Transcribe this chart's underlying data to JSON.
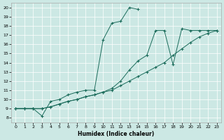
{
  "xlabel": "Humidex (Indice chaleur)",
  "xlim": [
    -0.5,
    23.5
  ],
  "ylim": [
    7.5,
    20.5
  ],
  "xticks": [
    0,
    1,
    2,
    3,
    4,
    5,
    6,
    7,
    8,
    9,
    10,
    11,
    12,
    13,
    14,
    15,
    16,
    17,
    18,
    19,
    20,
    21,
    22,
    23
  ],
  "yticks": [
    8,
    9,
    10,
    11,
    12,
    13,
    14,
    15,
    16,
    17,
    18,
    19,
    20
  ],
  "bg_color": "#cce8e4",
  "line_color": "#1a6b5a",
  "series1_x": [
    0,
    1,
    2,
    3,
    4,
    5,
    6,
    7,
    8,
    9,
    10,
    11,
    12,
    13,
    14
  ],
  "series1_y": [
    9.0,
    9.0,
    9.0,
    8.2,
    9.8,
    10.0,
    10.5,
    10.8,
    11.0,
    11.0,
    16.5,
    18.3,
    18.5,
    20.0,
    19.8
  ],
  "series2_x": [
    0,
    1,
    2,
    3,
    4,
    5,
    6,
    7,
    8,
    9,
    10,
    11,
    12,
    13,
    14,
    15,
    16,
    17,
    18,
    19,
    20,
    21,
    22,
    23
  ],
  "series2_y": [
    9.0,
    9.0,
    9.0,
    9.0,
    9.2,
    9.5,
    9.8,
    10.0,
    10.3,
    10.5,
    10.8,
    11.0,
    11.5,
    12.0,
    12.5,
    13.0,
    13.5,
    14.0,
    14.8,
    15.5,
    16.2,
    16.8,
    17.2,
    17.5
  ],
  "series3_x": [
    0,
    1,
    2,
    3,
    4,
    5,
    6,
    7,
    8,
    9,
    10,
    11,
    12,
    13,
    14,
    15,
    16,
    17,
    18,
    19,
    20,
    21,
    22,
    23
  ],
  "series3_y": [
    9.0,
    9.0,
    9.0,
    9.0,
    9.2,
    9.5,
    9.8,
    10.0,
    10.3,
    10.5,
    10.8,
    11.2,
    12.0,
    13.2,
    14.2,
    14.8,
    17.5,
    17.5,
    13.8,
    17.7,
    17.5,
    17.5,
    17.5,
    17.5
  ]
}
